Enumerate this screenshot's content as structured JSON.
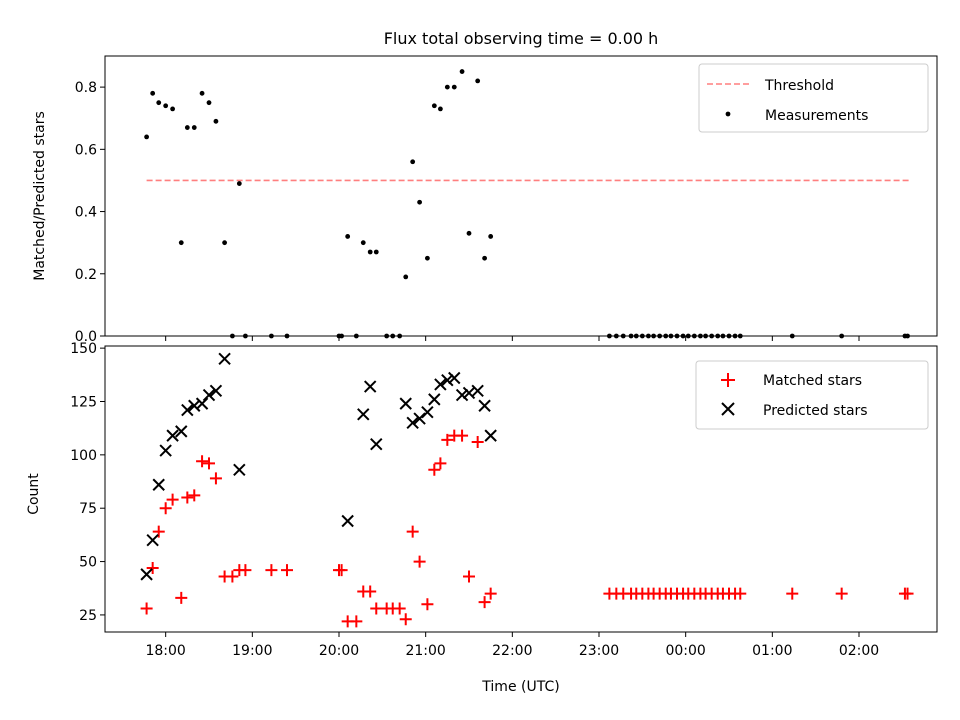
{
  "chart_data": [
    {
      "type": "scatter",
      "title": "Flux total observing time = 0.00 h",
      "xlabel": "",
      "ylabel": "Matched/Predicted stars",
      "ylim": [
        0,
        0.9
      ],
      "yticks": [
        0.0,
        0.2,
        0.4,
        0.6,
        0.8
      ],
      "ytick_labels": [
        "0.0",
        "0.2",
        "0.4",
        "0.6",
        "0.8"
      ],
      "legend_position": "top-right",
      "threshold": {
        "name": "Threshold",
        "value": 0.5,
        "x_start": 17.78,
        "x_end": 26.58,
        "color": "#ff7f7f"
      },
      "series": [
        {
          "name": "Measurements",
          "color": "#000000",
          "marker": "dot",
          "x": [
            17.78,
            17.85,
            17.92,
            18.0,
            18.08,
            18.18,
            18.25,
            18.33,
            18.42,
            18.5,
            18.58,
            18.68,
            18.77,
            18.85,
            18.92,
            19.22,
            19.4,
            20.0,
            20.03,
            20.1,
            20.2,
            20.28,
            20.36,
            20.43,
            20.55,
            20.62,
            20.7,
            20.77,
            20.85,
            20.93,
            21.02,
            21.1,
            21.17,
            21.25,
            21.33,
            21.42,
            21.5,
            21.6,
            21.68,
            21.75,
            23.12,
            23.2,
            23.28,
            23.37,
            23.43,
            23.5,
            23.57,
            23.63,
            23.7,
            23.77,
            23.83,
            23.9,
            23.97,
            24.03,
            24.1,
            24.17,
            24.23,
            24.3,
            24.37,
            24.43,
            24.5,
            24.57,
            24.63,
            25.23,
            25.8,
            26.53,
            26.56
          ],
          "y": [
            0.64,
            0.78,
            0.75,
            0.74,
            0.73,
            0.3,
            0.67,
            0.67,
            0.78,
            0.75,
            0.69,
            0.3,
            0.0,
            0.49,
            0.0,
            0.0,
            0.0,
            0.0,
            0.0,
            0.32,
            0.0,
            0.3,
            0.27,
            0.27,
            0.0,
            0.0,
            0.0,
            0.19,
            0.56,
            0.43,
            0.25,
            0.74,
            0.73,
            0.8,
            0.8,
            0.85,
            0.33,
            0.82,
            0.25,
            0.32,
            0.0,
            0.0,
            0.0,
            0.0,
            0.0,
            0.0,
            0.0,
            0.0,
            0.0,
            0.0,
            0.0,
            0.0,
            0.0,
            0.0,
            0.0,
            0.0,
            0.0,
            0.0,
            0.0,
            0.0,
            0.0,
            0.0,
            0.0,
            0.0,
            0.0,
            0.0,
            0.0
          ]
        }
      ]
    },
    {
      "type": "scatter",
      "title": "",
      "xlabel": "Time (UTC)",
      "ylabel": "Count",
      "ylim": [
        17,
        151
      ],
      "yticks": [
        25,
        50,
        75,
        100,
        125,
        150
      ],
      "ytick_labels": [
        "25",
        "50",
        "75",
        "100",
        "125",
        "150"
      ],
      "xlim": [
        17.3,
        26.9
      ],
      "xticks": [
        18,
        19,
        20,
        21,
        22,
        23,
        24,
        25,
        26
      ],
      "xtick_labels": [
        "18:00",
        "19:00",
        "20:00",
        "21:00",
        "22:00",
        "23:00",
        "00:00",
        "01:00",
        "02:00"
      ],
      "legend_position": "top-right",
      "series": [
        {
          "name": "Matched stars",
          "color": "#ff0000",
          "marker": "plus",
          "x": [
            17.78,
            17.85,
            17.92,
            18.0,
            18.08,
            18.18,
            18.25,
            18.33,
            18.42,
            18.5,
            18.58,
            18.68,
            18.77,
            18.85,
            18.92,
            19.22,
            19.4,
            20.0,
            20.03,
            20.1,
            20.2,
            20.28,
            20.36,
            20.43,
            20.55,
            20.62,
            20.7,
            20.77,
            20.85,
            20.93,
            21.02,
            21.1,
            21.17,
            21.25,
            21.33,
            21.42,
            21.5,
            21.6,
            21.68,
            21.75,
            23.12,
            23.2,
            23.28,
            23.37,
            23.43,
            23.5,
            23.57,
            23.63,
            23.7,
            23.77,
            23.83,
            23.9,
            23.97,
            24.03,
            24.1,
            24.17,
            24.23,
            24.3,
            24.37,
            24.43,
            24.5,
            24.57,
            24.63,
            25.23,
            25.8,
            26.53,
            26.56
          ],
          "y": [
            28,
            47,
            64,
            75,
            79,
            33,
            80,
            81,
            97,
            96,
            89,
            43,
            43,
            46,
            46,
            46,
            46,
            46,
            46,
            22,
            22,
            36,
            36,
            28,
            28,
            28,
            28,
            23,
            64,
            50,
            30,
            93,
            96,
            107,
            109,
            109,
            43,
            106,
            31,
            35,
            35,
            35,
            35,
            35,
            35,
            35,
            35,
            35,
            35,
            35,
            35,
            35,
            35,
            35,
            35,
            35,
            35,
            35,
            35,
            35,
            35,
            35,
            35,
            35,
            35,
            35,
            35
          ]
        },
        {
          "name": "Predicted stars",
          "color": "#000000",
          "marker": "x",
          "x": [
            17.78,
            17.85,
            17.92,
            18.0,
            18.08,
            18.18,
            18.25,
            18.33,
            18.42,
            18.5,
            18.58,
            18.68,
            18.85,
            20.1,
            20.28,
            20.36,
            20.43,
            20.77,
            20.85,
            20.93,
            21.02,
            21.1,
            21.17,
            21.25,
            21.33,
            21.42,
            21.5,
            21.6,
            21.68,
            21.75
          ],
          "y": [
            44,
            60,
            86,
            102,
            109,
            111,
            121,
            123,
            124,
            128,
            130,
            145,
            93,
            69,
            119,
            132,
            105,
            124,
            115,
            117,
            120,
            126,
            133,
            135,
            136,
            128,
            129,
            130,
            123,
            109
          ]
        }
      ]
    }
  ]
}
